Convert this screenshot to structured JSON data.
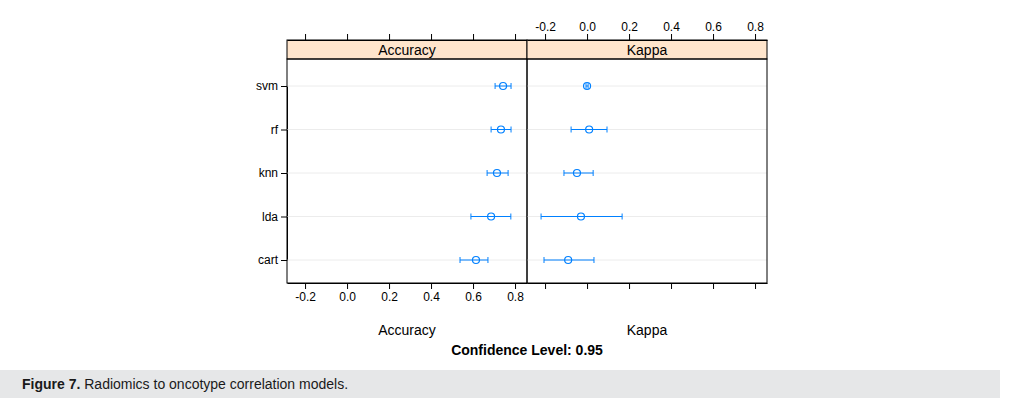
{
  "chart_data": {
    "type": "dotplot",
    "categories": [
      "svm",
      "rf",
      "knn",
      "lda",
      "cart"
    ],
    "series": [
      {
        "name": "Accuracy",
        "x_label": "Accuracy",
        "color": "#0080ff",
        "values": [
          0.743,
          0.733,
          0.714,
          0.686,
          0.614
        ],
        "lower": [
          0.705,
          0.686,
          0.667,
          0.59,
          0.538
        ],
        "upper": [
          0.781,
          0.781,
          0.767,
          0.78,
          0.671
        ]
      },
      {
        "name": "Kappa",
        "x_label": "Kappa",
        "color": "#0080ff",
        "values": [
          0.0,
          0.01,
          -0.048,
          -0.029,
          -0.09
        ],
        "lower": [
          -0.005,
          -0.076,
          -0.11,
          -0.219,
          -0.205
        ],
        "upper": [
          0.005,
          0.095,
          0.029,
          0.167,
          0.033
        ]
      }
    ],
    "xlim": [
      -0.286,
      0.857
    ],
    "xticks": [
      -0.2,
      {
        "value": 0,
        "label": "0.0"
      },
      0.2,
      0.4,
      0.6,
      0.8
    ],
    "footnote": "Confidence Level: 0.95",
    "caption_label": "Figure 7.",
    "caption": "Radiomics to oncotype correlation models.",
    "marker": "circle"
  }
}
